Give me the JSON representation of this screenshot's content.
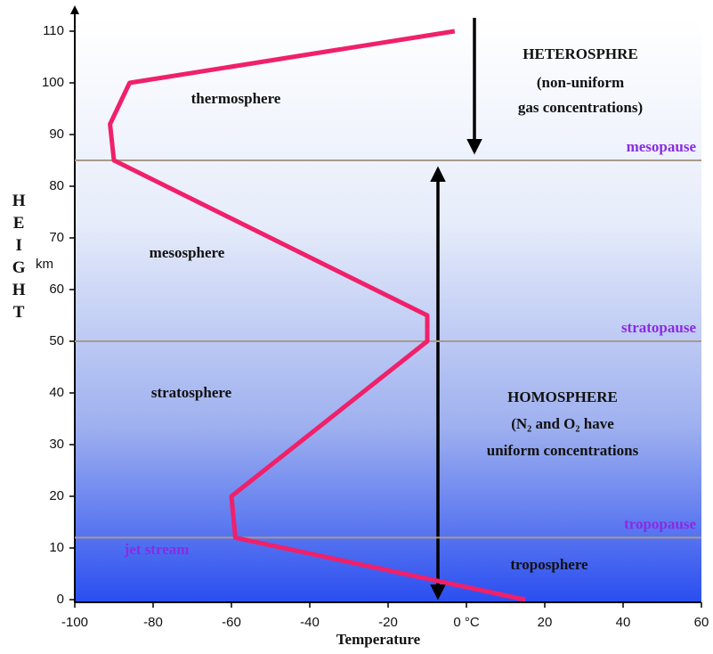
{
  "chart_data": {
    "type": "line",
    "x": [
      15,
      -59,
      -60,
      -10,
      -10,
      -90,
      -91,
      -86,
      -3
    ],
    "values": [
      0,
      12,
      20,
      50,
      55,
      85,
      92,
      100,
      110
    ],
    "color": "#f0206a",
    "xlim": [
      -100,
      60
    ],
    "ylim": [
      0,
      110
    ],
    "xticks": [
      -100,
      -80,
      -60,
      -40,
      -20,
      {
        "value": 0,
        "label": "0 °C"
      },
      20,
      40,
      60
    ],
    "yticks": [
      0,
      10,
      20,
      30,
      40,
      50,
      60,
      70,
      80,
      90,
      100,
      110
    ],
    "xlabel": "Temperature",
    "ylabel": "HEIGHT",
    "yunit": "km",
    "boundaries": [
      {
        "name": "mesopause",
        "height": 85
      },
      {
        "name": "stratopause",
        "height": 50
      },
      {
        "name": "tropopause",
        "height": 12
      }
    ],
    "annotations": [
      "thermosphere",
      "mesosphere",
      "stratosphere",
      "troposphere",
      "jet stream",
      "HETEROSPHRE",
      "(non-uniform",
      "gas concentrations)",
      "HOMOSPHERE",
      "(N₂ and O₂ have",
      "uniform concentrations"
    ]
  }
}
